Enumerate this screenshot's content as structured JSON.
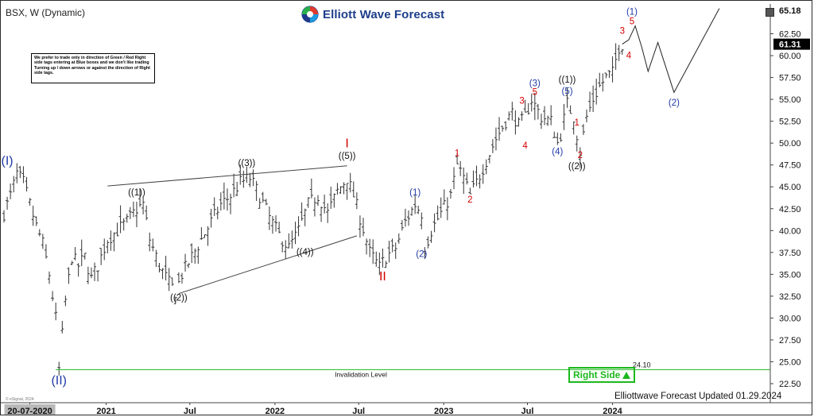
{
  "header": {
    "symbol_title": "BSX, W (Dynamic)",
    "brand_name": "Elliott Wave Forecast",
    "copyright": "© eSignal, 2024"
  },
  "notice_text": "We prefer to trade only in direction of Green / Red Right side tags entering at Blue boxes and we don't like trading Turning up / down arrows or against the direction of Right side tags.",
  "right_side_tag": {
    "label": "Right Side",
    "color": "#1cb81c"
  },
  "invalidation": {
    "label": "Invalidation Level",
    "value": "24.10",
    "color": "#1cb81c"
  },
  "footer": {
    "updated": "Elliottwave Forecast Updated 01.29.2024"
  },
  "colors": {
    "blue_label": "#1f3aa6",
    "red_label": "#d60000",
    "black_label": "#111111",
    "price_box": "#000000"
  },
  "chart_data": {
    "type": "ohlc",
    "title": "BSX, W (Dynamic)",
    "xlabel": "",
    "ylabel": "",
    "ylim": [
      22.5,
      65.18
    ],
    "x_range": [
      "2020-05-25",
      "2024-08-26"
    ],
    "x_ticks": [
      {
        "label": "20-07-2020",
        "date": "2020-07-20",
        "highlight": true
      },
      {
        "label": "2021",
        "date": "2021-01-01"
      },
      {
        "label": "Jul",
        "date": "2021-07-01"
      },
      {
        "label": "2022",
        "date": "2022-01-01"
      },
      {
        "label": "Jul",
        "date": "2022-07-01"
      },
      {
        "label": "2023",
        "date": "2023-01-01"
      },
      {
        "label": "Jul",
        "date": "2023-07-01"
      },
      {
        "label": "2024",
        "date": "2024-01-01"
      }
    ],
    "y_ticks": [
      "22.50",
      "25.00",
      "27.50",
      "30.00",
      "32.50",
      "35.00",
      "37.50",
      "40.00",
      "42.50",
      "45.00",
      "47.50",
      "50.00",
      "52.50",
      "55.00",
      "57.50",
      "60.00",
      "62.50",
      "65.18"
    ],
    "last_price": "61.31",
    "grid": false,
    "price_path": [
      [
        "2020-05-25",
        42.0
      ],
      [
        "2020-06-08",
        44.0
      ],
      [
        "2020-06-22",
        46.5
      ],
      [
        "2020-07-06",
        45.5
      ],
      [
        "2020-07-20",
        43.0
      ],
      [
        "2020-08-03",
        40.5
      ],
      [
        "2020-08-17",
        38.5
      ],
      [
        "2020-08-31",
        35.0
      ],
      [
        "2020-09-14",
        30.0
      ],
      [
        "2020-09-21",
        24.1
      ],
      [
        "2020-10-05",
        32.0
      ],
      [
        "2020-10-19",
        37.0
      ],
      [
        "2020-11-02",
        36.0
      ],
      [
        "2020-11-16",
        37.0
      ],
      [
        "2020-11-30",
        34.5
      ],
      [
        "2020-12-14",
        36.0
      ],
      [
        "2021-01-04",
        39.0
      ],
      [
        "2021-01-25",
        40.0
      ],
      [
        "2021-02-15",
        41.0
      ],
      [
        "2021-03-08",
        42.5
      ],
      [
        "2021-03-22",
        43.0
      ],
      [
        "2021-04-05",
        39.0
      ],
      [
        "2021-04-26",
        36.0
      ],
      [
        "2021-05-17",
        34.0
      ],
      [
        "2021-05-31",
        33.0
      ],
      [
        "2021-06-14",
        35.0
      ],
      [
        "2021-07-05",
        37.0
      ],
      [
        "2021-07-26",
        39.0
      ],
      [
        "2021-08-16",
        41.0
      ],
      [
        "2021-09-06",
        43.0
      ],
      [
        "2021-09-27",
        44.0
      ],
      [
        "2021-10-18",
        45.5
      ],
      [
        "2021-11-08",
        46.0
      ],
      [
        "2021-11-29",
        44.0
      ],
      [
        "2021-12-20",
        41.5
      ],
      [
        "2022-01-10",
        39.5
      ],
      [
        "2022-01-31",
        38.0
      ],
      [
        "2022-02-21",
        40.0
      ],
      [
        "2022-03-14",
        43.0
      ],
      [
        "2022-04-04",
        44.0
      ],
      [
        "2022-04-25",
        42.0
      ],
      [
        "2022-05-16",
        44.5
      ],
      [
        "2022-06-06",
        46.0
      ],
      [
        "2022-06-20",
        44.0
      ],
      [
        "2022-07-04",
        41.5
      ],
      [
        "2022-07-25",
        37.5
      ],
      [
        "2022-08-15",
        35.8
      ],
      [
        "2022-08-29",
        37.0
      ],
      [
        "2022-09-19",
        38.0
      ],
      [
        "2022-10-10",
        41.0
      ],
      [
        "2022-10-31",
        43.0
      ],
      [
        "2022-11-14",
        42.0
      ],
      [
        "2022-11-21",
        38.0
      ],
      [
        "2022-12-05",
        40.0
      ],
      [
        "2022-12-26",
        42.0
      ],
      [
        "2023-01-16",
        44.0
      ],
      [
        "2023-01-30",
        47.5
      ],
      [
        "2023-02-13",
        46.0
      ],
      [
        "2023-02-27",
        44.0
      ],
      [
        "2023-03-13",
        45.5
      ],
      [
        "2023-04-03",
        48.0
      ],
      [
        "2023-04-24",
        50.5
      ],
      [
        "2023-05-15",
        52.5
      ],
      [
        "2023-05-29",
        53.5
      ],
      [
        "2023-06-12",
        52.0
      ],
      [
        "2023-06-26",
        53.0
      ],
      [
        "2023-07-10",
        55.0
      ],
      [
        "2023-07-31",
        53.0
      ],
      [
        "2023-08-21",
        52.5
      ],
      [
        "2023-09-04",
        50.0
      ],
      [
        "2023-09-11",
        51.0
      ],
      [
        "2023-09-25",
        54.5
      ],
      [
        "2023-10-09",
        53.0
      ],
      [
        "2023-10-23",
        49.0
      ],
      [
        "2023-11-06",
        53.0
      ],
      [
        "2023-11-20",
        55.0
      ],
      [
        "2023-12-04",
        56.5
      ],
      [
        "2023-12-18",
        57.5
      ],
      [
        "2024-01-01",
        58.0
      ],
      [
        "2024-01-15",
        61.0
      ],
      [
        "2024-01-22",
        61.31
      ]
    ],
    "projection_path": [
      [
        "2024-01-22",
        61.31
      ],
      [
        "2024-02-05",
        61.8
      ],
      [
        "2024-02-19",
        63.4
      ],
      [
        "2024-03-04",
        61.0
      ],
      [
        "2024-03-18",
        58.2
      ],
      [
        "2024-04-08",
        61.5
      ],
      [
        "2024-05-13",
        55.8
      ],
      [
        "2024-08-19",
        65.4
      ]
    ],
    "trendlines": [
      {
        "name": "upper-channel",
        "from": [
          "2021-01-04",
          45.1
        ],
        "to": [
          "2022-06-06",
          47.4
        ]
      },
      {
        "name": "lower-channel",
        "from": [
          "2021-06-07",
          32.8
        ],
        "to": [
          "2022-06-27",
          39.4
        ]
      }
    ],
    "wave_labels": [
      {
        "text": "(I)",
        "date": "2020-06-01",
        "price": 47.5,
        "color": "blue",
        "size": "large"
      },
      {
        "text": "(II)",
        "date": "2020-09-21",
        "price": 22.4,
        "color": "blue",
        "size": "large"
      },
      {
        "text": "((1))",
        "date": "2021-03-08",
        "price": 44.0,
        "color": "black"
      },
      {
        "text": "((2))",
        "date": "2021-06-07",
        "price": 32.0,
        "color": "black"
      },
      {
        "text": "((3))",
        "date": "2021-11-01",
        "price": 47.4,
        "color": "black"
      },
      {
        "text": "((4))",
        "date": "2022-03-07",
        "price": 37.2,
        "color": "black"
      },
      {
        "text": "((5))",
        "date": "2022-06-06",
        "price": 48.2,
        "color": "black"
      },
      {
        "text": "I",
        "date": "2022-06-06",
        "price": 49.5,
        "color": "red",
        "size": "large"
      },
      {
        "text": "II",
        "date": "2022-08-22",
        "price": 34.3,
        "color": "red",
        "size": "large"
      },
      {
        "text": "(1)",
        "date": "2022-10-31",
        "price": 44.0,
        "color": "blue"
      },
      {
        "text": "(2)",
        "date": "2022-11-14",
        "price": 37.0,
        "color": "blue"
      },
      {
        "text": "1",
        "date": "2023-01-30",
        "price": 48.5,
        "color": "red"
      },
      {
        "text": "2",
        "date": "2023-02-27",
        "price": 43.2,
        "color": "red"
      },
      {
        "text": "3",
        "date": "2023-06-19",
        "price": 54.5,
        "color": "red"
      },
      {
        "text": "4",
        "date": "2023-06-26",
        "price": 49.4,
        "color": "red"
      },
      {
        "text": "5",
        "date": "2023-07-17",
        "price": 55.5,
        "color": "red"
      },
      {
        "text": "(3)",
        "date": "2023-07-17",
        "price": 56.5,
        "color": "blue"
      },
      {
        "text": "(4)",
        "date": "2023-09-04",
        "price": 48.7,
        "color": "blue"
      },
      {
        "text": "(5)",
        "date": "2023-09-25",
        "price": 55.6,
        "color": "blue"
      },
      {
        "text": "((1))",
        "date": "2023-09-25",
        "price": 56.9,
        "color": "black"
      },
      {
        "text": "1",
        "date": "2023-10-16",
        "price": 52.0,
        "color": "red"
      },
      {
        "text": "2",
        "date": "2023-10-23",
        "price": 48.3,
        "color": "red"
      },
      {
        "text": "((2))",
        "date": "2023-10-16",
        "price": 47.0,
        "color": "black"
      },
      {
        "text": "3",
        "date": "2024-01-22",
        "price": 62.5,
        "color": "red"
      },
      {
        "text": "4",
        "date": "2024-02-05",
        "price": 59.7,
        "color": "red"
      },
      {
        "text": "5",
        "date": "2024-02-12",
        "price": 63.6,
        "color": "red"
      },
      {
        "text": "(1)",
        "date": "2024-02-12",
        "price": 64.7,
        "color": "blue"
      },
      {
        "text": "(2)",
        "date": "2024-05-13",
        "price": 54.3,
        "color": "blue"
      }
    ]
  }
}
